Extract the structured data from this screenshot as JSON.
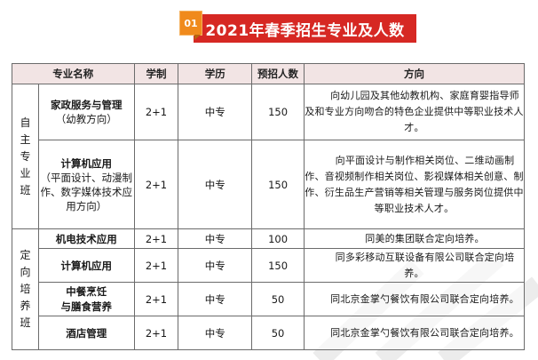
{
  "title": {
    "number": "01",
    "text": "2021年春季招生专业及人数"
  },
  "headers": [
    "专业名称",
    "学制",
    "学历",
    "预招人数",
    "方向"
  ],
  "groups": [
    {
      "label": [
        "自",
        "主",
        "专",
        "业",
        "班"
      ],
      "rows": [
        {
          "name": "家政服务与管理",
          "name_sub": "（幼教方向）",
          "duration": "2+1",
          "level": "中专",
          "count": "150",
          "direction": "向幼儿园及其他幼教机构、家庭育婴指导师及和专业方向吻合的特色企业提供中等职业技术人才。"
        },
        {
          "name": "计算机应用",
          "name_sub": "（平面设计、动漫制作、数字媒体技术应用方向）",
          "duration": "2+1",
          "level": "中专",
          "count": "150",
          "direction": "向平面设计与制作相关岗位、二维动画制作、音视频制作相关岗位、影视媒体相关创意、制作、衍生品生产营销等相关管理与服务岗位提供中等职业技术人才。"
        }
      ]
    },
    {
      "label": [
        "定",
        "向",
        "培",
        "养",
        "班"
      ],
      "rows": [
        {
          "name": "机电技术应用",
          "name_sub": "",
          "duration": "2+1",
          "level": "中专",
          "count": "100",
          "direction": "同美的集团联合定向培养。"
        },
        {
          "name": "计算机应用",
          "name_sub": "",
          "duration": "2+1",
          "level": "中专",
          "count": "150",
          "direction": "同多彩移动互联设备有限公司联合定向培养。"
        },
        {
          "name": "中餐烹饪与膳食营养",
          "name_sub": "",
          "duration": "2+1",
          "level": "中专",
          "count": "50",
          "direction": "同北京金掌勺餐饮有限公司联合定向培养。"
        },
        {
          "name": "酒店管理",
          "name_sub": "",
          "duration": "2+1",
          "level": "中专",
          "count": "50",
          "direction": "同北京金掌勺餐饮有限公司联合定向培养。"
        }
      ]
    }
  ],
  "colors": {
    "title_bg": "#d62823",
    "badge_bg": "#f08a1c",
    "header_bg": "#f2e4e4"
  }
}
